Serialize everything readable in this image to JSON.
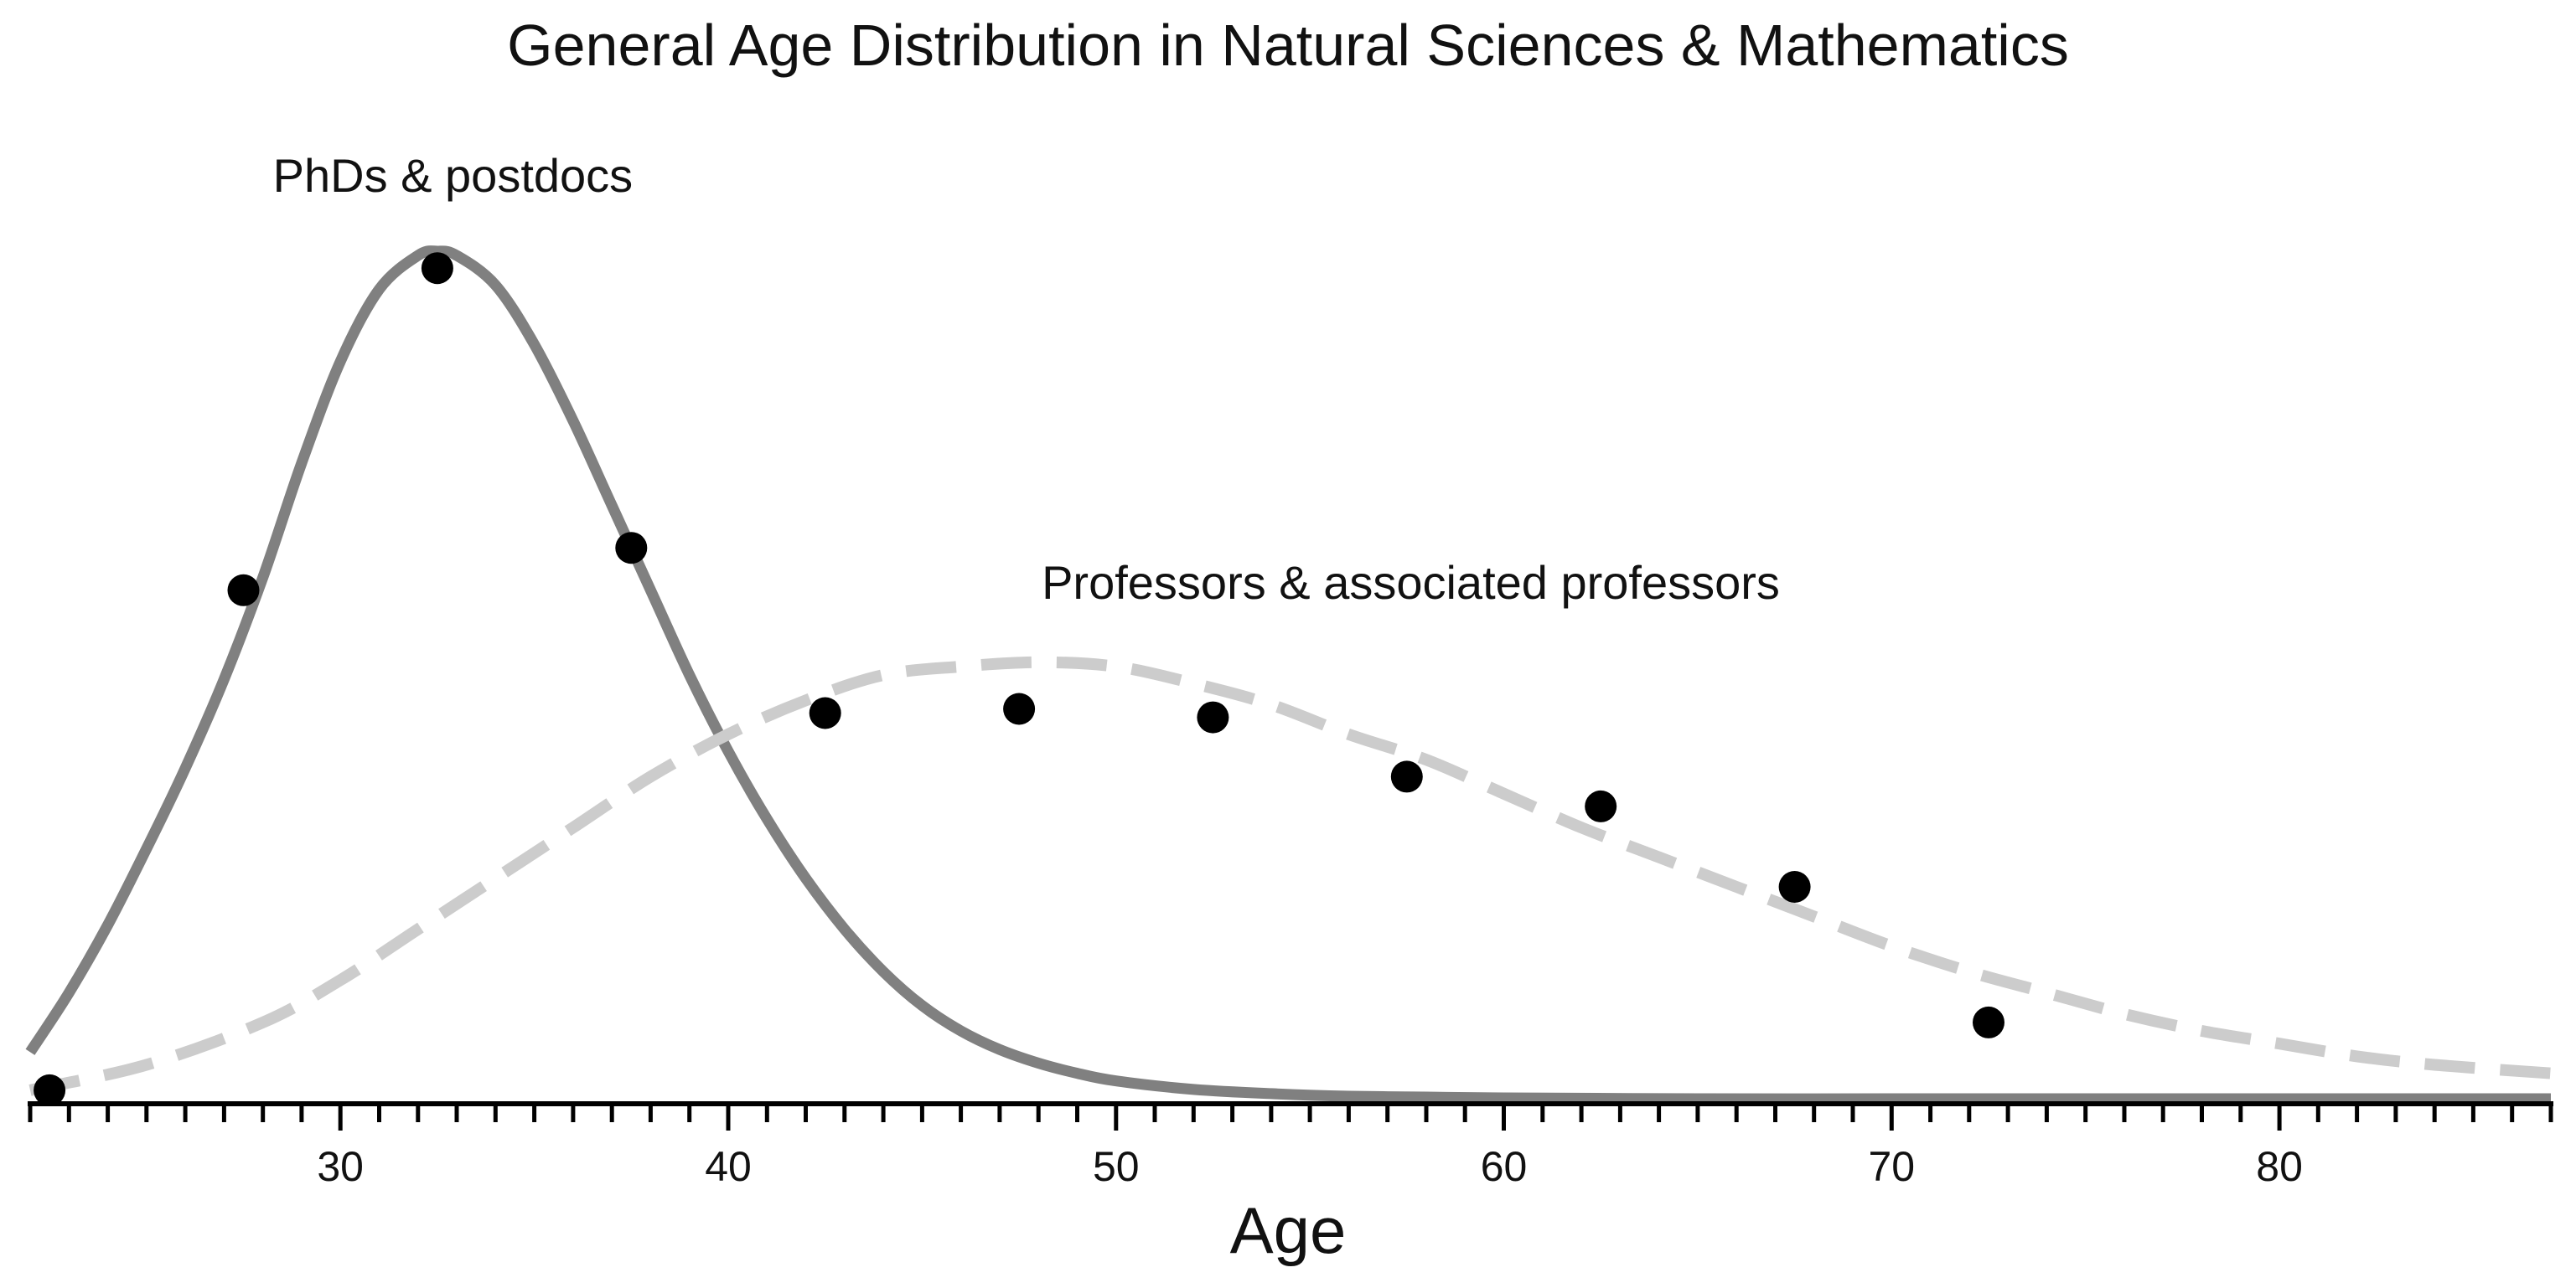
{
  "chart_data": {
    "type": "line",
    "title": "General Age Distribution in Natural Sciences & Mathematics",
    "xlabel": "Age",
    "ylabel": "",
    "xlim": [
      22,
      87
    ],
    "ylim": [
      0,
      1
    ],
    "grid": false,
    "x_major_ticks": [
      30,
      40,
      50,
      60,
      70,
      80
    ],
    "x_minor_tick_step": 1,
    "annotations": [
      {
        "text": "PhDs & postdocs",
        "x": 32.9,
        "y": 1.07
      },
      {
        "text": "Professors & associated professors",
        "x": 57.6,
        "y": 0.59
      }
    ],
    "series": [
      {
        "kind": "fitted-curve",
        "style": "solid",
        "color": "#808080",
        "x": [
          22,
          23,
          24,
          25,
          26,
          27,
          28,
          29,
          30,
          31,
          32,
          32.5,
          33,
          34,
          35,
          36,
          37,
          38,
          39,
          40,
          41,
          42,
          43,
          44,
          45,
          46,
          47,
          48,
          49,
          50,
          52,
          54,
          56,
          58,
          60,
          65,
          70,
          75,
          80,
          87
        ],
        "y": [
          0.055,
          0.125,
          0.205,
          0.295,
          0.39,
          0.495,
          0.615,
          0.75,
          0.87,
          0.955,
          0.995,
          1.0,
          0.995,
          0.96,
          0.89,
          0.8,
          0.7,
          0.6,
          0.5,
          0.41,
          0.33,
          0.26,
          0.2,
          0.15,
          0.11,
          0.08,
          0.058,
          0.042,
          0.03,
          0.021,
          0.011,
          0.006,
          0.003,
          0.002,
          0.001,
          0.0,
          0.0,
          0.0,
          0.0,
          0.0
        ]
      },
      {
        "kind": "fitted-curve",
        "style": "dashed",
        "color": "#cccccc",
        "x": [
          22,
          25,
          28,
          30,
          32,
          34,
          36,
          38,
          40,
          42,
          44,
          46,
          48,
          50,
          52,
          54,
          56,
          58,
          60,
          62,
          64,
          66,
          68,
          70,
          72,
          74,
          76,
          78,
          80,
          82,
          84,
          87
        ],
        "y": [
          0.01,
          0.04,
          0.09,
          0.14,
          0.2,
          0.26,
          0.32,
          0.38,
          0.43,
          0.47,
          0.5,
          0.51,
          0.515,
          0.51,
          0.49,
          0.465,
          0.43,
          0.4,
          0.36,
          0.32,
          0.285,
          0.25,
          0.215,
          0.18,
          0.15,
          0.125,
          0.1,
          0.08,
          0.065,
          0.05,
          0.04,
          0.03
        ]
      },
      {
        "kind": "points",
        "color": "#000000",
        "x": [
          22.5,
          27.5,
          32.5,
          37.5,
          42.5,
          47.5,
          52.5,
          57.5,
          62.5,
          67.5,
          72.5
        ],
        "y": [
          0.01,
          0.6,
          0.98,
          0.65,
          0.455,
          0.46,
          0.45,
          0.38,
          0.345,
          0.25,
          0.09
        ]
      }
    ]
  }
}
